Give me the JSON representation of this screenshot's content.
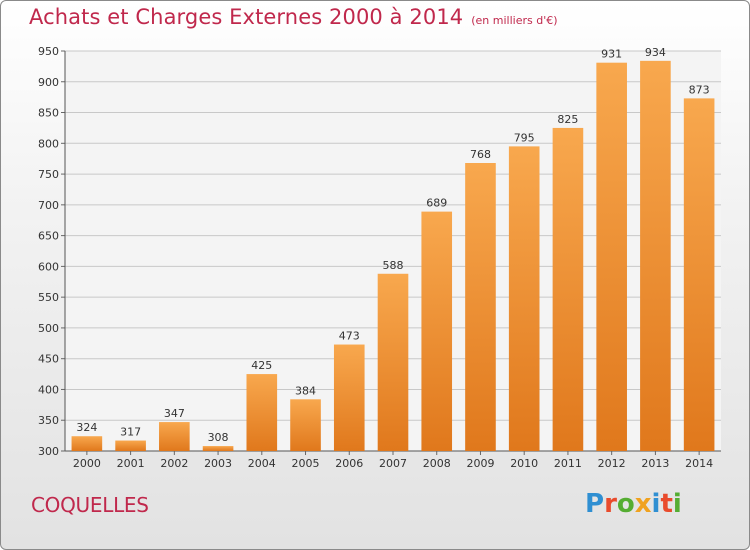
{
  "header": {
    "title": "Achats et Charges Externes 2000 à 2014",
    "subtitle": "(en milliers d'€)"
  },
  "commune": "COQUELLES",
  "brand": {
    "letters": [
      {
        "ch": "P",
        "color": "#2f8fd2"
      },
      {
        "ch": "r",
        "color": "#e94b2c"
      },
      {
        "ch": "o",
        "color": "#55ad32"
      },
      {
        "ch": "x",
        "color": "#f0a21f"
      },
      {
        "ch": "i",
        "color": "#2f8fd2"
      },
      {
        "ch": "t",
        "color": "#e94b2c"
      },
      {
        "ch": "i",
        "color": "#55ad32"
      }
    ]
  },
  "colors": {
    "text_accent": "#c0284c",
    "bar_light": "#f8a84e",
    "bar_dark": "#e0781c",
    "grid": "#c8c8c8"
  },
  "chart_data": {
    "type": "bar",
    "categories": [
      "2000",
      "2001",
      "2002",
      "2003",
      "2004",
      "2005",
      "2006",
      "2007",
      "2008",
      "2009",
      "2010",
      "2011",
      "2012",
      "2013",
      "2014"
    ],
    "values": [
      324,
      317,
      347,
      308,
      425,
      384,
      473,
      588,
      689,
      768,
      795,
      825,
      931,
      934,
      873
    ],
    "ylim": [
      300,
      950
    ],
    "yticks": [
      300,
      350,
      400,
      450,
      500,
      550,
      600,
      650,
      700,
      750,
      800,
      850,
      900,
      950
    ],
    "grid": true,
    "show_value_labels": true
  }
}
